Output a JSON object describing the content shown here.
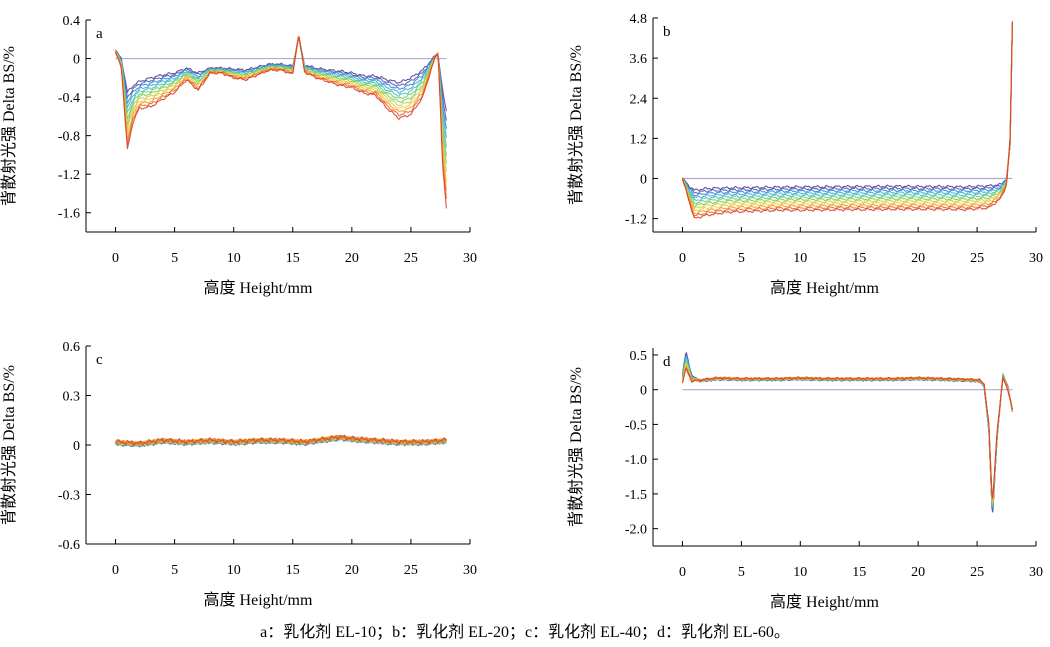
{
  "caption": "a：乳化剂 EL-10；b：乳化剂 EL-20；c：乳化剂 EL-40；d：乳化剂 EL-60。",
  "line_colors": [
    "#5a3e9a",
    "#4660b4",
    "#3d8ad0",
    "#42aee0",
    "#4cc3b8",
    "#7ccd6a",
    "#c4d44a",
    "#f3cb3a",
    "#f39a32",
    "#eb6a2c",
    "#d8412c"
  ],
  "chart_data": [
    {
      "panel": "a",
      "type": "line",
      "xlabel": "高度 Height/mm",
      "ylabel": "背散射光强 Delta BS/%",
      "xlim": [
        -2.5,
        30
      ],
      "ylim": [
        -1.8,
        0.4
      ],
      "xticks": [
        0,
        5,
        10,
        15,
        20,
        25,
        30
      ],
      "yticks": [
        0.4,
        0,
        -0.4,
        -0.8,
        -1.2,
        -1.6
      ],
      "ytick_labels": [
        "0.4",
        "0",
        "-0.4",
        "-0.8",
        "-1.2",
        "-1.6"
      ],
      "x": [
        0,
        0.5,
        1,
        1.5,
        2,
        3,
        4,
        5,
        6,
        7,
        8,
        9,
        10,
        11,
        12,
        13,
        14,
        15,
        15.5,
        16,
        17,
        18,
        19,
        20,
        21,
        22,
        23,
        24,
        25,
        26,
        27,
        27.3,
        27.7,
        28
      ],
      "series": [
        {
          "values": [
            0.08,
            0.0,
            -0.35,
            -0.28,
            -0.24,
            -0.2,
            -0.17,
            -0.15,
            -0.1,
            -0.15,
            -0.1,
            -0.1,
            -0.11,
            -0.12,
            -0.09,
            -0.06,
            -0.06,
            -0.08,
            0.22,
            -0.07,
            -0.1,
            -0.12,
            -0.13,
            -0.15,
            -0.18,
            -0.18,
            -0.22,
            -0.25,
            -0.2,
            -0.12,
            0.02,
            0.04,
            -0.35,
            -0.55
          ]
        },
        {
          "values": [
            0.07,
            -0.1,
            -0.95,
            -0.65,
            -0.52,
            -0.5,
            -0.42,
            -0.35,
            -0.22,
            -0.33,
            -0.15,
            -0.15,
            -0.2,
            -0.22,
            -0.17,
            -0.12,
            -0.12,
            -0.16,
            0.25,
            -0.14,
            -0.2,
            -0.24,
            -0.28,
            -0.3,
            -0.36,
            -0.38,
            -0.52,
            -0.62,
            -0.58,
            -0.4,
            0.0,
            0.06,
            -1.15,
            -1.55
          ]
        }
      ],
      "reference_line": 0
    },
    {
      "panel": "b",
      "type": "line",
      "xlabel": "高度 Height/mm",
      "ylabel": "背散射光强 Delta BS/%",
      "xlim": [
        -2.5,
        30
      ],
      "ylim": [
        -1.6,
        4.8
      ],
      "xticks": [
        0,
        5,
        10,
        15,
        20,
        25,
        30
      ],
      "yticks": [
        4.8,
        3.6,
        2.4,
        1.2,
        0,
        -1.2
      ],
      "ytick_labels": [
        "4.8",
        "3.6",
        "2.4",
        "1.2",
        "0",
        "-1.2"
      ],
      "x": [
        0,
        0.5,
        1,
        2,
        4,
        6,
        8,
        10,
        12,
        14,
        16,
        18,
        20,
        22,
        24,
        26,
        27,
        27.5,
        27.8,
        28
      ],
      "series": [
        {
          "values": [
            0.0,
            -0.2,
            -0.35,
            -0.3,
            -0.28,
            -0.27,
            -0.26,
            -0.25,
            -0.25,
            -0.24,
            -0.24,
            -0.23,
            -0.24,
            -0.24,
            -0.25,
            -0.22,
            -0.18,
            0.0,
            1.0,
            4.6
          ]
        },
        {
          "values": [
            0.0,
            -0.6,
            -1.2,
            -1.1,
            -1.0,
            -0.98,
            -0.95,
            -0.95,
            -0.94,
            -0.93,
            -0.93,
            -0.92,
            -0.92,
            -0.92,
            -0.93,
            -0.88,
            -0.6,
            -0.2,
            1.2,
            4.7
          ]
        }
      ],
      "reference_line": 0
    },
    {
      "panel": "c",
      "type": "line",
      "xlabel": "高度 Height/mm",
      "ylabel": "背散射光强 Delta BS/%",
      "xlim": [
        -2.5,
        30
      ],
      "ylim": [
        -0.6,
        0.6
      ],
      "xticks": [
        0,
        5,
        10,
        15,
        20,
        25,
        30
      ],
      "yticks": [
        0.6,
        0.3,
        0,
        -0.3,
        -0.6
      ],
      "ytick_labels": [
        "0.6",
        "0.3",
        "0",
        "-0.3",
        "-0.6"
      ],
      "x": [
        0,
        2,
        4,
        6,
        8,
        10,
        12,
        14,
        16,
        18,
        19,
        20,
        22,
        24,
        26,
        28
      ],
      "series": [
        {
          "values": [
            0.01,
            0.0,
            0.02,
            0.01,
            0.02,
            0.01,
            0.02,
            0.02,
            0.01,
            0.03,
            0.04,
            0.03,
            0.02,
            0.01,
            0.01,
            0.02
          ]
        },
        {
          "values": [
            0.02,
            0.01,
            0.03,
            0.02,
            0.03,
            0.02,
            0.03,
            0.03,
            0.02,
            0.04,
            0.05,
            0.04,
            0.03,
            0.02,
            0.02,
            0.03
          ]
        }
      ],
      "reference_line": null
    },
    {
      "panel": "d",
      "type": "line",
      "xlabel": "高度 Height/mm",
      "ylabel": "背散射光强 Delta BS/%",
      "xlim": [
        -2.5,
        30
      ],
      "ylim": [
        -2.25,
        0.6
      ],
      "xticks": [
        0,
        5,
        10,
        15,
        20,
        25,
        30
      ],
      "yticks": [
        0.5,
        0,
        -0.5,
        -1.0,
        -1.5,
        -2.0
      ],
      "ytick_labels": [
        "0.5",
        "0",
        "-0.5",
        "-1.0",
        "-1.5",
        "-2.0"
      ],
      "x": [
        0,
        0.3,
        0.8,
        1.5,
        3,
        5,
        8,
        10,
        12,
        15,
        18,
        20,
        22,
        24,
        25.2,
        25.6,
        26,
        26.3,
        26.7,
        27.2,
        27.6,
        28
      ],
      "series": [
        {
          "values": [
            0.2,
            0.55,
            0.2,
            0.12,
            0.15,
            0.14,
            0.14,
            0.15,
            0.14,
            0.14,
            0.14,
            0.15,
            0.14,
            0.13,
            0.12,
            0.05,
            -0.6,
            -1.85,
            -0.7,
            0.22,
            0.05,
            -0.32
          ]
        },
        {
          "values": [
            0.1,
            0.3,
            0.12,
            0.14,
            0.17,
            0.16,
            0.16,
            0.17,
            0.16,
            0.16,
            0.16,
            0.17,
            0.16,
            0.15,
            0.14,
            0.08,
            -0.5,
            -1.65,
            -0.6,
            0.18,
            0.0,
            -0.28
          ]
        }
      ],
      "reference_line": 0
    }
  ]
}
